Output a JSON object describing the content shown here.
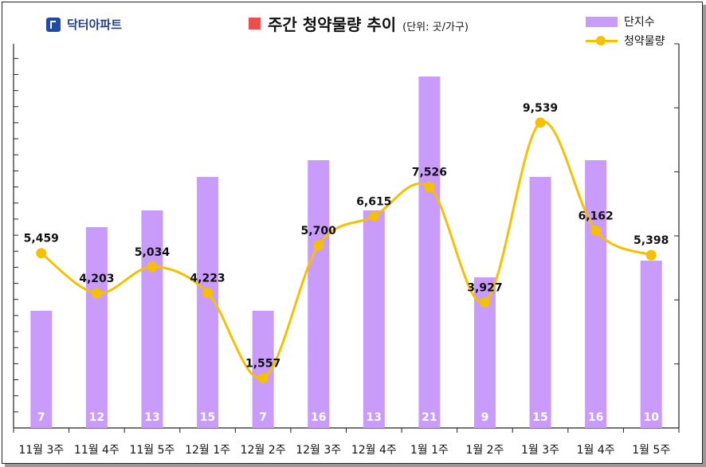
{
  "brand": {
    "name": "닥터아파트",
    "logo_icon": "doctor-apt-logo-icon"
  },
  "header": {
    "title": "주간 청약물량 추이",
    "unit": "(단위: 곳/가구)"
  },
  "colors": {
    "bar": "#c99bfb",
    "line": "#f5c000",
    "title_marker": "#ee4d4d"
  },
  "legend": {
    "bar_label": "단지수",
    "line_label": "청약물량"
  },
  "chart_data": {
    "type": "bar",
    "categories": [
      "11월 3주",
      "11월 4주",
      "11월 5주",
      "12월 1주",
      "12월 2주",
      "12월 3주",
      "12월 4주",
      "1월 1주",
      "1월 2주",
      "1월 3주",
      "1월 4주",
      "1월 5주"
    ],
    "series": [
      {
        "name": "단지수",
        "type": "bar",
        "axis": "left",
        "values": [
          7,
          12,
          13,
          15,
          7,
          16,
          13,
          21,
          9,
          15,
          16,
          10
        ],
        "labels": [
          "7",
          "12",
          "13",
          "15",
          "7",
          "16",
          "13",
          "21",
          "9",
          "15",
          "16",
          "10"
        ]
      },
      {
        "name": "청약물량",
        "type": "line",
        "axis": "right",
        "values": [
          5459,
          4203,
          5034,
          4223,
          1557,
          5700,
          6615,
          7526,
          3927,
          9539,
          6162,
          5398
        ],
        "labels": [
          "5,459",
          "4,203",
          "5,034",
          "4,223",
          "1,557",
          "5,700",
          "6,615",
          "7,526",
          "3,927",
          "9,539",
          "6,162",
          "5,398"
        ]
      }
    ],
    "bar_ylim": [
      0,
      24
    ],
    "line_ylim": [
      0,
      12000
    ],
    "legend_position": "top-right"
  }
}
